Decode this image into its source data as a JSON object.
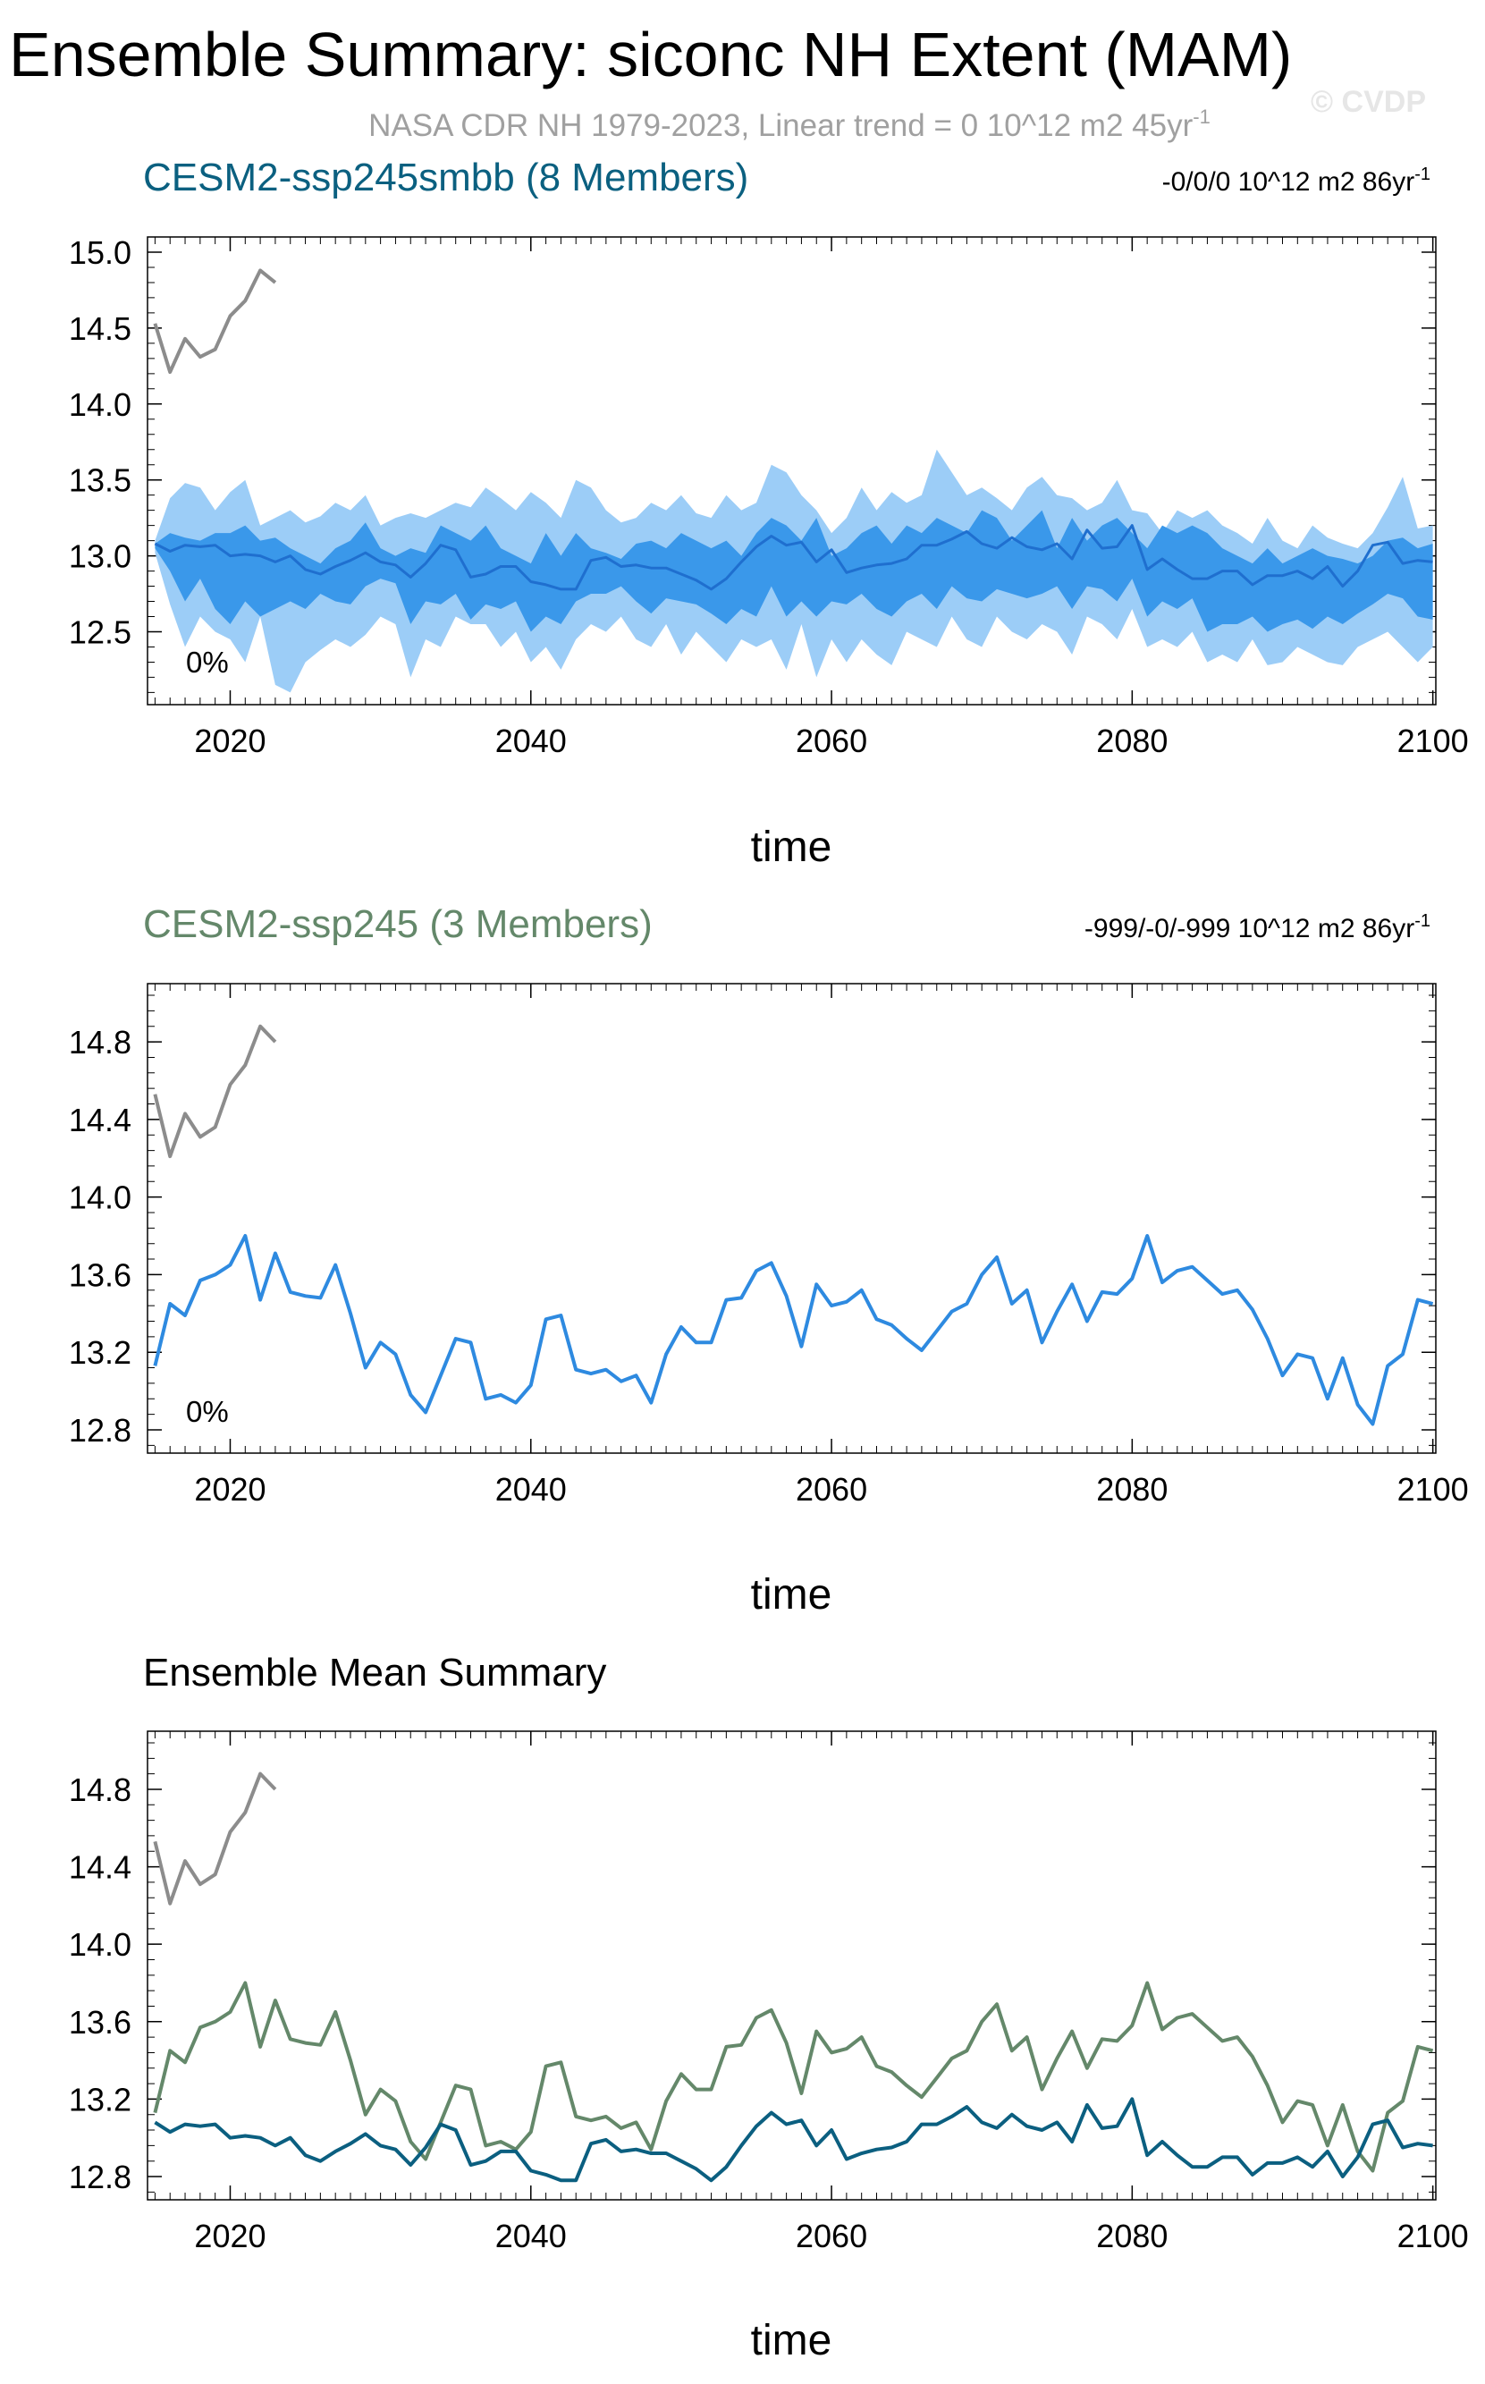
{
  "title": "Ensemble Summary: siconc NH Extent (MAM)",
  "subtitle_main": "NASA CDR NH 1979-2023, Linear trend = 0 10^12 m2 45yr",
  "subtitle_sup": "-1",
  "watermark": "© CVDP",
  "colors": {
    "obs": "#8c8c8c",
    "smbb_title": "#0b6080",
    "smbb_spread_outer": "#9ccdf7",
    "smbb_spread_inner": "#3a98ea",
    "smbb_mean": "#1f6fcf",
    "member_line": "#2e8ae0",
    "ssp245_title": "#64886a",
    "mean_smbb": "#0b5f80",
    "mean_ssp245": "#64886a"
  },
  "chart_data": [
    {
      "type": "line",
      "panel_title": "CESM2-ssp245smbb (8 Members)",
      "trend_label": "-0/0/0 10^12 m2 86yr",
      "trend_sup": "-1",
      "annotation": "0%",
      "xlabel": "time",
      "xlim": [
        2014.5,
        2100.2
      ],
      "xticks": [
        2020,
        2040,
        2060,
        2080,
        2100
      ],
      "xtick_labels": [
        "2020",
        "2040",
        "2060",
        "2080",
        "2100"
      ],
      "ylim": [
        12.02,
        15.1
      ],
      "yticks": [
        12.5,
        13.0,
        13.5,
        14.0,
        14.5,
        15.0
      ],
      "ytick_labels": [
        "12.5",
        "13.0",
        "13.5",
        "14.0",
        "14.5",
        "15.0"
      ],
      "x_start": 2015,
      "obs": {
        "name": "NASA CDR NH",
        "x_start": 2015,
        "values": [
          14.53,
          14.21,
          14.43,
          14.31,
          14.36,
          14.58,
          14.68,
          14.88,
          14.8
        ]
      },
      "spread_outer": {
        "upper": [
          13.1,
          13.38,
          13.48,
          13.45,
          13.3,
          13.42,
          13.5,
          13.2,
          13.25,
          13.3,
          13.22,
          13.26,
          13.35,
          13.3,
          13.4,
          13.2,
          13.25,
          13.28,
          13.25,
          13.3,
          13.35,
          13.32,
          13.45,
          13.38,
          13.3,
          13.42,
          13.35,
          13.25,
          13.5,
          13.45,
          13.3,
          13.22,
          13.25,
          13.35,
          13.3,
          13.4,
          13.28,
          13.25,
          13.4,
          13.3,
          13.35,
          13.6,
          13.55,
          13.4,
          13.3,
          13.15,
          13.25,
          13.45,
          13.3,
          13.42,
          13.35,
          13.4,
          13.7,
          13.55,
          13.4,
          13.45,
          13.38,
          13.3,
          13.45,
          13.52,
          13.4,
          13.38,
          13.3,
          13.35,
          13.5,
          13.3,
          13.28,
          13.15,
          13.3,
          13.25,
          13.3,
          13.2,
          13.15,
          13.08,
          13.25,
          13.1,
          13.05,
          13.2,
          13.12,
          13.08,
          13.05,
          13.15,
          13.32,
          13.52,
          13.18,
          13.2
        ],
        "lower": [
          13.02,
          12.68,
          12.4,
          12.6,
          12.5,
          12.45,
          12.3,
          12.6,
          12.15,
          12.1,
          12.3,
          12.38,
          12.45,
          12.4,
          12.48,
          12.6,
          12.55,
          12.2,
          12.45,
          12.4,
          12.6,
          12.55,
          12.55,
          12.4,
          12.5,
          12.3,
          12.4,
          12.25,
          12.45,
          12.55,
          12.5,
          12.6,
          12.45,
          12.4,
          12.55,
          12.35,
          12.5,
          12.4,
          12.3,
          12.45,
          12.4,
          12.45,
          12.25,
          12.55,
          12.2,
          12.45,
          12.3,
          12.45,
          12.35,
          12.28,
          12.5,
          12.45,
          12.4,
          12.6,
          12.45,
          12.4,
          12.6,
          12.5,
          12.45,
          12.55,
          12.5,
          12.35,
          12.6,
          12.55,
          12.45,
          12.65,
          12.4,
          12.45,
          12.4,
          12.5,
          12.3,
          12.35,
          12.3,
          12.45,
          12.28,
          12.3,
          12.4,
          12.35,
          12.3,
          12.28,
          12.4,
          12.45,
          12.5,
          12.4,
          12.3,
          12.4
        ]
      },
      "spread_inner": {
        "upper": [
          13.08,
          13.15,
          13.12,
          13.1,
          13.15,
          13.15,
          13.2,
          13.1,
          13.12,
          13.05,
          13.0,
          12.95,
          13.05,
          13.1,
          13.22,
          13.05,
          13.0,
          13.05,
          13.02,
          13.2,
          13.15,
          13.1,
          13.2,
          13.05,
          13.0,
          12.95,
          13.15,
          13.0,
          13.15,
          13.05,
          13.02,
          12.98,
          13.08,
          13.1,
          13.05,
          13.15,
          13.1,
          13.05,
          13.1,
          13.0,
          13.15,
          13.25,
          13.2,
          13.1,
          13.25,
          13.0,
          13.05,
          13.15,
          13.2,
          13.08,
          13.2,
          13.15,
          13.25,
          13.2,
          13.15,
          13.3,
          13.25,
          13.1,
          13.2,
          13.3,
          13.05,
          13.25,
          13.1,
          13.2,
          13.25,
          13.15,
          13.05,
          13.2,
          13.15,
          13.2,
          13.15,
          13.05,
          13.0,
          12.95,
          13.05,
          12.95,
          13.0,
          13.05,
          13.0,
          12.98,
          12.95,
          13.0,
          13.1,
          13.12,
          13.05,
          13.08
        ],
        "lower": [
          13.05,
          12.9,
          12.7,
          12.85,
          12.65,
          12.55,
          12.7,
          12.6,
          12.65,
          12.7,
          12.65,
          12.75,
          12.7,
          12.68,
          12.8,
          12.85,
          12.82,
          12.55,
          12.7,
          12.68,
          12.75,
          12.58,
          12.68,
          12.65,
          12.7,
          12.5,
          12.6,
          12.55,
          12.7,
          12.75,
          12.75,
          12.8,
          12.7,
          12.62,
          12.72,
          12.7,
          12.68,
          12.62,
          12.55,
          12.65,
          12.6,
          12.8,
          12.6,
          12.7,
          12.6,
          12.7,
          12.68,
          12.75,
          12.65,
          12.6,
          12.7,
          12.75,
          12.65,
          12.8,
          12.72,
          12.7,
          12.78,
          12.75,
          12.72,
          12.75,
          12.8,
          12.65,
          12.8,
          12.78,
          12.7,
          12.85,
          12.6,
          12.7,
          12.65,
          12.72,
          12.5,
          12.55,
          12.55,
          12.6,
          12.5,
          12.55,
          12.58,
          12.52,
          12.6,
          12.55,
          12.62,
          12.68,
          12.75,
          12.72,
          12.6,
          12.58
        ]
      },
      "ensemble_mean": {
        "name": "CESM2-ssp245smbb",
        "values": [
          13.08,
          13.03,
          13.07,
          13.06,
          13.07,
          13.0,
          13.01,
          13.0,
          12.96,
          13.0,
          12.91,
          12.88,
          12.93,
          12.97,
          13.02,
          12.96,
          12.94,
          12.86,
          12.95,
          13.07,
          13.04,
          12.86,
          12.88,
          12.93,
          12.93,
          12.83,
          12.81,
          12.78,
          12.78,
          12.97,
          12.99,
          12.93,
          12.94,
          12.92,
          12.92,
          12.88,
          12.84,
          12.78,
          12.85,
          12.96,
          13.06,
          13.13,
          13.07,
          13.09,
          12.96,
          13.04,
          12.89,
          12.92,
          12.94,
          12.95,
          12.98,
          13.07,
          13.07,
          13.11,
          13.16,
          13.08,
          13.05,
          13.12,
          13.06,
          13.04,
          13.08,
          12.98,
          13.17,
          13.05,
          13.06,
          13.2,
          12.91,
          12.98,
          12.91,
          12.85,
          12.85,
          12.9,
          12.9,
          12.81,
          12.87,
          12.87,
          12.9,
          12.85,
          12.93,
          12.8,
          12.9,
          13.07,
          13.09,
          12.95,
          12.97,
          12.96
        ]
      }
    },
    {
      "type": "line",
      "panel_title": "CESM2-ssp245 (3 Members)",
      "trend_label": "-999/-0/-999 10^12 m2 86yr",
      "trend_sup": "-1",
      "annotation": "0%",
      "xlabel": "time",
      "xlim": [
        2014.5,
        2100.2
      ],
      "xticks": [
        2020,
        2040,
        2060,
        2080,
        2100
      ],
      "xtick_labels": [
        "2020",
        "2040",
        "2060",
        "2080",
        "2100"
      ],
      "ylim": [
        12.68,
        15.1
      ],
      "yticks": [
        12.8,
        13.2,
        13.6,
        14.0,
        14.4,
        14.8
      ],
      "ytick_labels": [
        "12.8",
        "13.2",
        "13.6",
        "14.0",
        "14.4",
        "14.8"
      ],
      "x_start": 2015,
      "obs": {
        "name": "NASA CDR NH",
        "x_start": 2015,
        "values": [
          14.53,
          14.21,
          14.43,
          14.31,
          14.36,
          14.58,
          14.68,
          14.88,
          14.8
        ]
      },
      "member": {
        "name": "CESM2-ssp245",
        "values": [
          13.13,
          13.45,
          13.39,
          13.57,
          13.6,
          13.65,
          13.8,
          13.47,
          13.71,
          13.51,
          13.49,
          13.48,
          13.65,
          13.4,
          13.12,
          13.25,
          13.19,
          12.98,
          12.89,
          13.08,
          13.27,
          13.25,
          12.96,
          12.98,
          12.94,
          13.03,
          13.37,
          13.39,
          13.11,
          13.09,
          13.11,
          13.05,
          13.08,
          12.94,
          13.19,
          13.33,
          13.25,
          13.25,
          13.47,
          13.48,
          13.62,
          13.66,
          13.49,
          13.23,
          13.55,
          13.44,
          13.46,
          13.52,
          13.37,
          13.34,
          13.27,
          13.21,
          13.31,
          13.41,
          13.45,
          13.6,
          13.69,
          13.45,
          13.52,
          13.25,
          13.41,
          13.55,
          13.36,
          13.51,
          13.5,
          13.58,
          13.8,
          13.56,
          13.62,
          13.64,
          13.57,
          13.5,
          13.52,
          13.42,
          13.27,
          13.08,
          13.19,
          13.17,
          12.96,
          13.17,
          12.93,
          12.83,
          13.13,
          13.19,
          13.47,
          13.45
        ]
      }
    },
    {
      "type": "line",
      "panel_title": "Ensemble Mean Summary",
      "xlabel": "time",
      "xlim": [
        2014.5,
        2100.2
      ],
      "xticks": [
        2020,
        2040,
        2060,
        2080,
        2100
      ],
      "xtick_labels": [
        "2020",
        "2040",
        "2060",
        "2080",
        "2100"
      ],
      "ylim": [
        12.68,
        15.1
      ],
      "yticks": [
        12.8,
        13.2,
        13.6,
        14.0,
        14.4,
        14.8
      ],
      "ytick_labels": [
        "12.8",
        "13.2",
        "13.6",
        "14.0",
        "14.4",
        "14.8"
      ],
      "x_start": 2015,
      "series": [
        {
          "name": "NASA CDR NH",
          "x_start": 2015,
          "values": [
            14.53,
            14.21,
            14.43,
            14.31,
            14.36,
            14.58,
            14.68,
            14.88,
            14.8
          ]
        },
        {
          "name": "CESM2-ssp245",
          "x_start": 2015,
          "values": [
            13.13,
            13.45,
            13.39,
            13.57,
            13.6,
            13.65,
            13.8,
            13.47,
            13.71,
            13.51,
            13.49,
            13.48,
            13.65,
            13.4,
            13.12,
            13.25,
            13.19,
            12.98,
            12.89,
            13.08,
            13.27,
            13.25,
            12.96,
            12.98,
            12.94,
            13.03,
            13.37,
            13.39,
            13.11,
            13.09,
            13.11,
            13.05,
            13.08,
            12.94,
            13.19,
            13.33,
            13.25,
            13.25,
            13.47,
            13.48,
            13.62,
            13.66,
            13.49,
            13.23,
            13.55,
            13.44,
            13.46,
            13.52,
            13.37,
            13.34,
            13.27,
            13.21,
            13.31,
            13.41,
            13.45,
            13.6,
            13.69,
            13.45,
            13.52,
            13.25,
            13.41,
            13.55,
            13.36,
            13.51,
            13.5,
            13.58,
            13.8,
            13.56,
            13.62,
            13.64,
            13.57,
            13.5,
            13.52,
            13.42,
            13.27,
            13.08,
            13.19,
            13.17,
            12.96,
            13.17,
            12.93,
            12.83,
            13.13,
            13.19,
            13.47,
            13.45
          ]
        },
        {
          "name": "CESM2-ssp245smbb",
          "x_start": 2015,
          "values": [
            13.08,
            13.03,
            13.07,
            13.06,
            13.07,
            13.0,
            13.01,
            13.0,
            12.96,
            13.0,
            12.91,
            12.88,
            12.93,
            12.97,
            13.02,
            12.96,
            12.94,
            12.86,
            12.95,
            13.07,
            13.04,
            12.86,
            12.88,
            12.93,
            12.93,
            12.83,
            12.81,
            12.78,
            12.78,
            12.97,
            12.99,
            12.93,
            12.94,
            12.92,
            12.92,
            12.88,
            12.84,
            12.78,
            12.85,
            12.96,
            13.06,
            13.13,
            13.07,
            13.09,
            12.96,
            13.04,
            12.89,
            12.92,
            12.94,
            12.95,
            12.98,
            13.07,
            13.07,
            13.11,
            13.16,
            13.08,
            13.05,
            13.12,
            13.06,
            13.04,
            13.08,
            12.98,
            13.17,
            13.05,
            13.06,
            13.2,
            12.91,
            12.98,
            12.91,
            12.85,
            12.85,
            12.9,
            12.9,
            12.81,
            12.87,
            12.87,
            12.9,
            12.85,
            12.93,
            12.8,
            12.9,
            13.07,
            13.09,
            12.95,
            12.97,
            12.96
          ]
        }
      ]
    }
  ]
}
